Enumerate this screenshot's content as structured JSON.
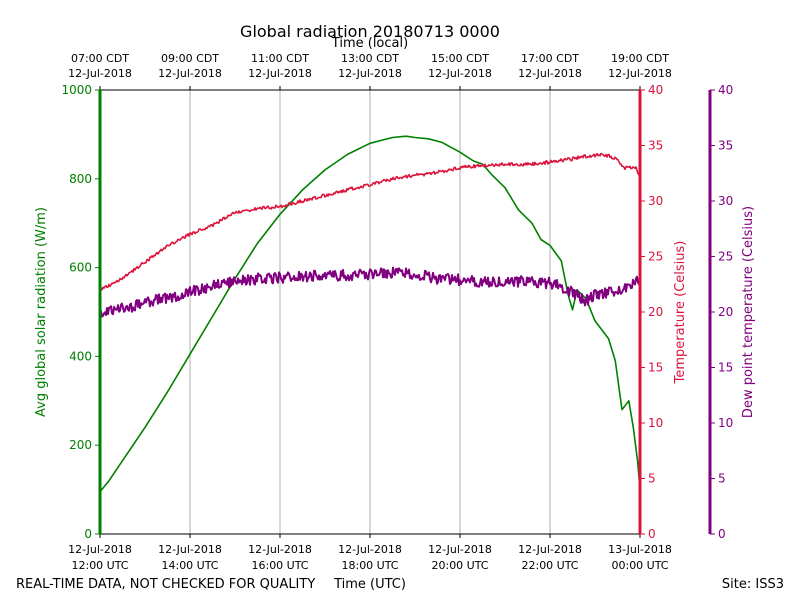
{
  "chart_data": {
    "type": "line",
    "title": "Global radiation 20180713 0000",
    "top_xlabel": "Time (local)",
    "xlabel": "Time (UTC)",
    "footer_left": "REAL-TIME DATA, NOT CHECKED FOR QUALITY",
    "footer_right": "Site: ISS3",
    "colors": {
      "radiation": "#008000",
      "temperature": "#dc143c",
      "dewpoint": "#800080",
      "grid": "#b0b0b0"
    },
    "x_range_hours": [
      12,
      24
    ],
    "bottom_ticks": [
      {
        "hour": 12,
        "line1": "12-Jul-2018",
        "line2": "12:00 UTC"
      },
      {
        "hour": 14,
        "line1": "12-Jul-2018",
        "line2": "14:00 UTC"
      },
      {
        "hour": 16,
        "line1": "12-Jul-2018",
        "line2": "16:00 UTC"
      },
      {
        "hour": 18,
        "line1": "12-Jul-2018",
        "line2": "18:00 UTC"
      },
      {
        "hour": 20,
        "line1": "12-Jul-2018",
        "line2": "20:00 UTC"
      },
      {
        "hour": 22,
        "line1": "12-Jul-2018",
        "line2": "22:00 UTC"
      },
      {
        "hour": 24,
        "line1": "13-Jul-2018",
        "line2": "00:00 UTC"
      }
    ],
    "top_ticks": [
      {
        "hour": 12,
        "line1": "07:00 CDT",
        "line2": "12-Jul-2018"
      },
      {
        "hour": 14,
        "line1": "09:00 CDT",
        "line2": "12-Jul-2018"
      },
      {
        "hour": 16,
        "line1": "11:00 CDT",
        "line2": "12-Jul-2018"
      },
      {
        "hour": 18,
        "line1": "13:00 CDT",
        "line2": "12-Jul-2018"
      },
      {
        "hour": 20,
        "line1": "15:00 CDT",
        "line2": "12-Jul-2018"
      },
      {
        "hour": 22,
        "line1": "17:00 CDT",
        "line2": "12-Jul-2018"
      },
      {
        "hour": 24,
        "line1": "19:00 CDT",
        "line2": "12-Jul-2018"
      }
    ],
    "axes": {
      "radiation": {
        "label": "Avg global solar radiation (W/m)",
        "ylim": [
          0,
          1000
        ],
        "ticks": [
          "0",
          "200",
          "400",
          "600",
          "800",
          "1000"
        ]
      },
      "temperature": {
        "label": "Temperature (Celsius)",
        "ylim": [
          0,
          40
        ],
        "ticks": [
          "0",
          "5",
          "10",
          "15",
          "20",
          "25",
          "30",
          "35",
          "40"
        ]
      },
      "dewpoint": {
        "label": "Dew point temperature (Celsius)",
        "ylim": [
          0,
          40
        ],
        "ticks": [
          "0",
          "5",
          "10",
          "15",
          "20",
          "25",
          "30",
          "35",
          "40"
        ]
      }
    },
    "series": [
      {
        "name": "radiation",
        "axis": "radiation",
        "noise": 0,
        "seed": 1,
        "points": [
          [
            12.0,
            95
          ],
          [
            12.2,
            120
          ],
          [
            12.5,
            165
          ],
          [
            13.0,
            240
          ],
          [
            13.5,
            320
          ],
          [
            14.0,
            405
          ],
          [
            14.5,
            490
          ],
          [
            15.0,
            575
          ],
          [
            15.5,
            655
          ],
          [
            16.0,
            720
          ],
          [
            16.5,
            775
          ],
          [
            17.0,
            820
          ],
          [
            17.5,
            855
          ],
          [
            18.0,
            880
          ],
          [
            18.5,
            893
          ],
          [
            18.8,
            896
          ],
          [
            19.0,
            893
          ],
          [
            19.3,
            890
          ],
          [
            19.6,
            882
          ],
          [
            20.0,
            860
          ],
          [
            20.3,
            840
          ],
          [
            20.5,
            833
          ],
          [
            20.7,
            810
          ],
          [
            21.0,
            780
          ],
          [
            21.3,
            730
          ],
          [
            21.6,
            700
          ],
          [
            21.8,
            663
          ],
          [
            22.0,
            650
          ],
          [
            22.25,
            615
          ],
          [
            22.4,
            540
          ],
          [
            22.5,
            505
          ],
          [
            22.6,
            550
          ],
          [
            22.8,
            530
          ],
          [
            23.0,
            480
          ],
          [
            23.3,
            440
          ],
          [
            23.45,
            390
          ],
          [
            23.6,
            280
          ],
          [
            23.75,
            300
          ],
          [
            23.85,
            240
          ],
          [
            23.95,
            160
          ],
          [
            24.0,
            100
          ]
        ]
      },
      {
        "name": "temperature",
        "axis": "temperature",
        "noise": 0.15,
        "seed": 7,
        "points": [
          [
            12.0,
            22.0
          ],
          [
            12.5,
            23.0
          ],
          [
            13.0,
            24.5
          ],
          [
            13.5,
            26.0
          ],
          [
            14.0,
            27.0
          ],
          [
            14.5,
            27.8
          ],
          [
            15.0,
            29.0
          ],
          [
            15.5,
            29.3
          ],
          [
            16.0,
            29.5
          ],
          [
            16.5,
            30.0
          ],
          [
            17.0,
            30.5
          ],
          [
            17.5,
            31.0
          ],
          [
            18.0,
            31.5
          ],
          [
            18.5,
            32.0
          ],
          [
            19.0,
            32.3
          ],
          [
            19.5,
            32.6
          ],
          [
            20.0,
            33.0
          ],
          [
            20.5,
            33.2
          ],
          [
            21.0,
            33.3
          ],
          [
            21.5,
            33.3
          ],
          [
            22.0,
            33.5
          ],
          [
            22.5,
            33.8
          ],
          [
            22.9,
            34.1
          ],
          [
            23.2,
            34.2
          ],
          [
            23.5,
            33.8
          ],
          [
            23.6,
            33.0
          ],
          [
            23.9,
            33.0
          ],
          [
            24.0,
            32.3
          ]
        ]
      },
      {
        "name": "dewpoint",
        "axis": "dewpoint",
        "noise": 0.5,
        "seed": 13,
        "points": [
          [
            12.0,
            20.0
          ],
          [
            12.5,
            20.3
          ],
          [
            13.0,
            20.8
          ],
          [
            13.5,
            21.3
          ],
          [
            14.0,
            21.8
          ],
          [
            14.5,
            22.3
          ],
          [
            15.0,
            22.8
          ],
          [
            15.5,
            23.0
          ],
          [
            16.0,
            23.1
          ],
          [
            16.5,
            23.2
          ],
          [
            17.0,
            23.3
          ],
          [
            17.5,
            23.3
          ],
          [
            18.0,
            23.4
          ],
          [
            18.5,
            23.5
          ],
          [
            19.0,
            23.4
          ],
          [
            19.5,
            23.0
          ],
          [
            20.0,
            22.9
          ],
          [
            20.5,
            22.7
          ],
          [
            21.0,
            22.8
          ],
          [
            21.5,
            22.7
          ],
          [
            22.0,
            22.6
          ],
          [
            22.3,
            22.2
          ],
          [
            22.6,
            21.5
          ],
          [
            22.8,
            21.0
          ],
          [
            23.0,
            21.5
          ],
          [
            23.5,
            22.0
          ],
          [
            24.0,
            22.8
          ]
        ]
      }
    ]
  }
}
